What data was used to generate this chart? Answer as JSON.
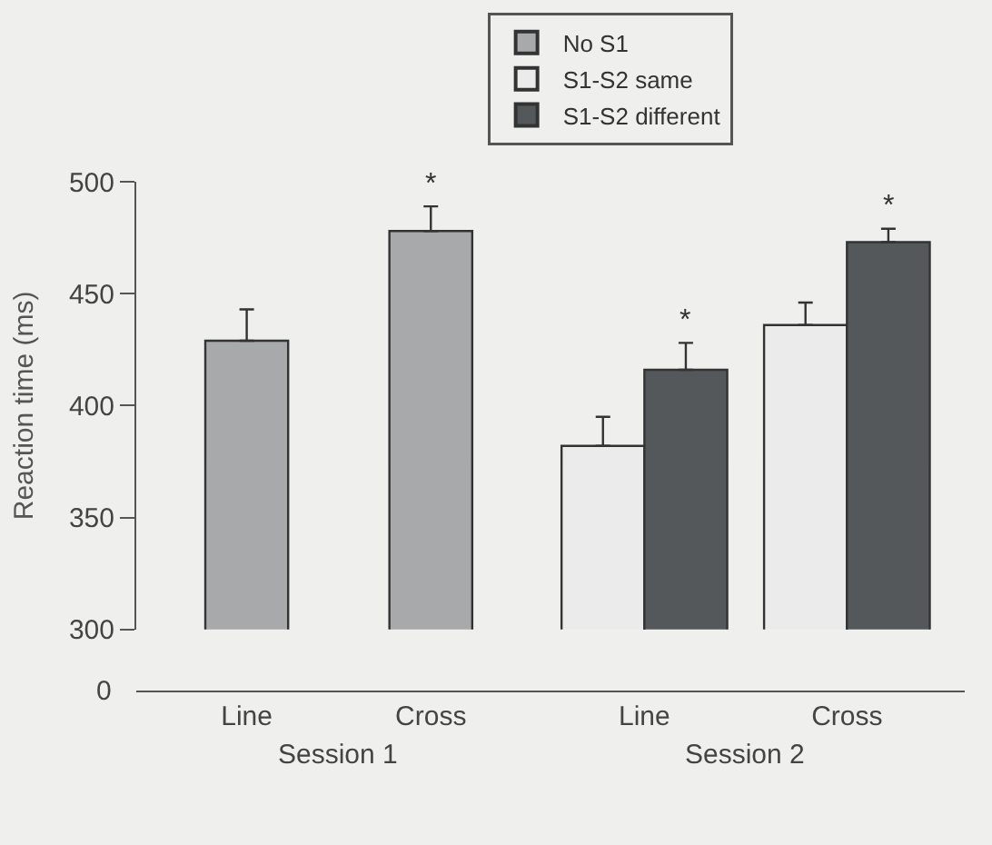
{
  "chart_data": {
    "type": "bar",
    "ylabel": "Reaction time (ms)",
    "categories": [
      "Line",
      "Cross",
      "Line",
      "Cross"
    ],
    "series": [
      {
        "name": "No S1",
        "color": "#a7a9ab",
        "values": [
          429,
          478,
          null,
          null
        ],
        "errors": [
          14,
          11,
          null,
          null
        ],
        "value_labels": [
          null,
          "*",
          null,
          null
        ]
      },
      {
        "name": "S1-S2 same",
        "color": "#ebebeb",
        "values": [
          null,
          null,
          382,
          436
        ],
        "errors": [
          null,
          null,
          13,
          10
        ],
        "value_labels": [
          null,
          null,
          null,
          null
        ]
      },
      {
        "name": "S1-S2 different",
        "color": "#55585a",
        "values": [
          null,
          null,
          416,
          473
        ],
        "errors": [
          null,
          null,
          12,
          6
        ],
        "value_labels": [
          null,
          null,
          "*",
          "*"
        ]
      }
    ],
    "ylim": [
      300,
      500
    ],
    "yticks": [
      300,
      350,
      400,
      450,
      500
    ],
    "annotations": [
      "Session 1",
      "Session 2",
      "0"
    ],
    "legend": "top right",
    "grid": false
  }
}
